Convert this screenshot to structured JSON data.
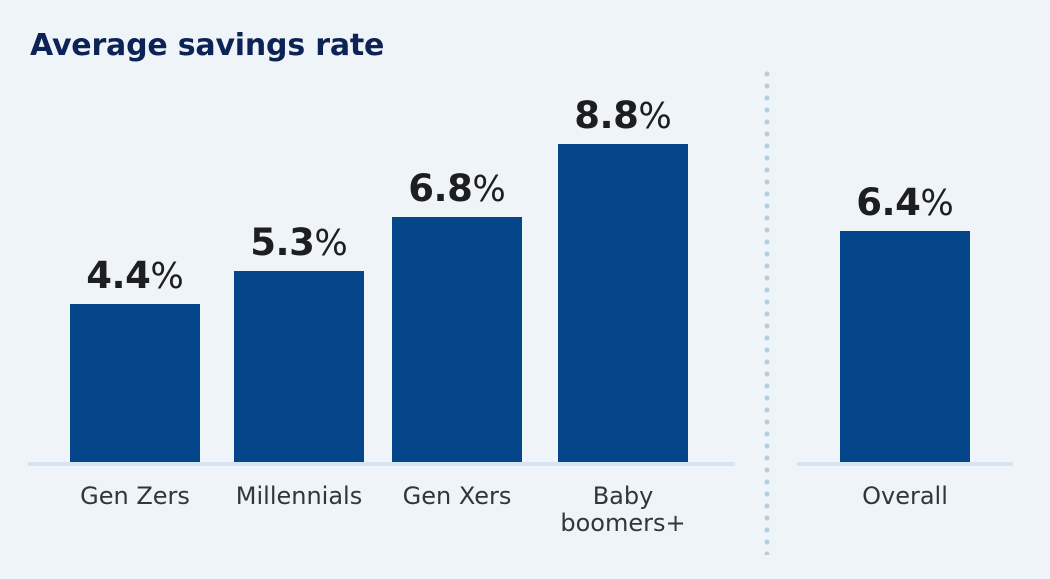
{
  "page": {
    "background": "#eef4f8"
  },
  "chart_data": {
    "type": "bar",
    "title": "Average savings rate",
    "unit": "%",
    "xlabel": "",
    "ylabel": "",
    "ylim": [
      0,
      9.6
    ],
    "grid": false,
    "legend": "none",
    "layout_note": "Two bar groups separated by a vertical dotted divider; value labels above bars; no y-axis shown",
    "groups": [
      {
        "name": "generations",
        "categories": [
          "Gen Zers",
          "Millennials",
          "Gen Xers",
          "Baby\nboomers+"
        ],
        "values": [
          4.4,
          5.3,
          6.8,
          8.8
        ],
        "value_labels": [
          "4.4%",
          "5.3%",
          "6.8%",
          "8.8%"
        ]
      },
      {
        "name": "overall",
        "categories": [
          "Overall"
        ],
        "values": [
          6.4
        ],
        "value_labels": [
          "6.4%"
        ]
      }
    ],
    "colors": {
      "page_bg": "#eef4f8",
      "bar": "#05458a",
      "title": "#0d2356",
      "value_label": "#1d1e20",
      "category_label": "#31363b",
      "axis_line": "#d5e4f0",
      "divider_dots": "#b3cfe3"
    }
  }
}
